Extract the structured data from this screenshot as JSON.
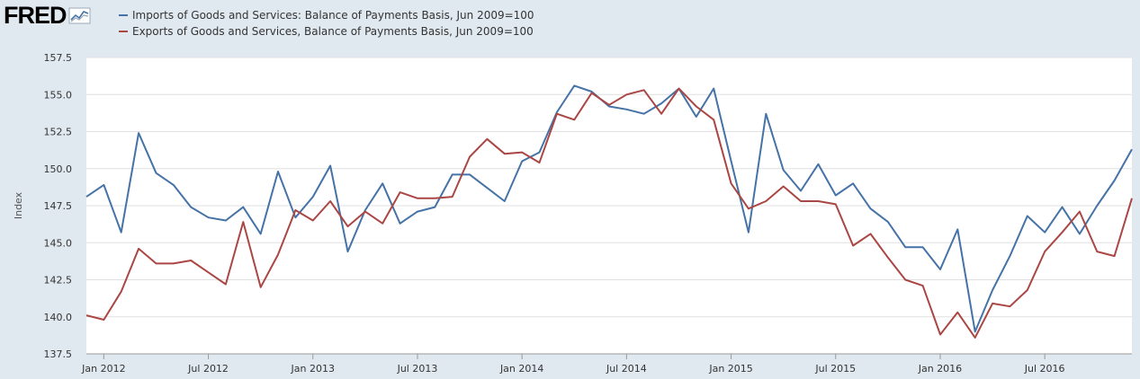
{
  "brand": {
    "logo_text": "FRED",
    "logo_icon": "trend-line-icon"
  },
  "colors": {
    "background": "#e1e9f0",
    "plot_background": "#ffffff",
    "grid": "#e0e0e0",
    "imports": "#4572a7",
    "exports": "#aa4643"
  },
  "chart_data": {
    "type": "line",
    "ylabel": "Index",
    "ylim": [
      137.5,
      157.5
    ],
    "yticks": [
      137.5,
      140.0,
      142.5,
      145.0,
      147.5,
      150.0,
      152.5,
      155.0,
      157.5
    ],
    "xlim": [
      "2011-12",
      "2016-12"
    ],
    "xticks": [
      {
        "date": "2012-01",
        "label": "Jan 2012"
      },
      {
        "date": "2012-07",
        "label": "Jul 2012"
      },
      {
        "date": "2013-01",
        "label": "Jan 2013"
      },
      {
        "date": "2013-07",
        "label": "Jul 2013"
      },
      {
        "date": "2014-01",
        "label": "Jan 2014"
      },
      {
        "date": "2014-07",
        "label": "Jul 2014"
      },
      {
        "date": "2015-01",
        "label": "Jan 2015"
      },
      {
        "date": "2015-07",
        "label": "Jul 2015"
      },
      {
        "date": "2016-01",
        "label": "Jan 2016"
      },
      {
        "date": "2016-07",
        "label": "Jul 2016"
      }
    ],
    "grid": true,
    "legend_position": "top-left",
    "x": [
      "2011-12",
      "2012-01",
      "2012-02",
      "2012-03",
      "2012-04",
      "2012-05",
      "2012-06",
      "2012-07",
      "2012-08",
      "2012-09",
      "2012-10",
      "2012-11",
      "2012-12",
      "2013-01",
      "2013-02",
      "2013-03",
      "2013-04",
      "2013-05",
      "2013-06",
      "2013-07",
      "2013-08",
      "2013-09",
      "2013-10",
      "2013-11",
      "2013-12",
      "2014-01",
      "2014-02",
      "2014-03",
      "2014-04",
      "2014-05",
      "2014-06",
      "2014-07",
      "2014-08",
      "2014-09",
      "2014-10",
      "2014-11",
      "2014-12",
      "2015-01",
      "2015-02",
      "2015-03",
      "2015-04",
      "2015-05",
      "2015-06",
      "2015-07",
      "2015-08",
      "2015-09",
      "2015-10",
      "2015-11",
      "2015-12",
      "2016-01",
      "2016-02",
      "2016-03",
      "2016-04",
      "2016-05",
      "2016-06",
      "2016-07",
      "2016-08",
      "2016-09",
      "2016-10",
      "2016-11",
      "2016-12"
    ],
    "series": [
      {
        "name": "Imports of Goods and Services: Balance of Payments Basis, Jun 2009=100",
        "color": "#4572a7",
        "values": [
          148.1,
          148.9,
          145.7,
          152.4,
          149.7,
          148.9,
          147.4,
          146.7,
          146.5,
          147.4,
          145.6,
          149.8,
          146.7,
          148.1,
          150.2,
          144.4,
          147.2,
          149.0,
          146.3,
          147.1,
          147.4,
          149.6,
          149.6,
          148.7,
          147.8,
          150.5,
          151.1,
          153.8,
          155.6,
          155.2,
          154.2,
          154.0,
          153.7,
          154.4,
          155.4,
          153.5,
          155.4,
          150.5,
          145.7,
          153.7,
          149.9,
          148.5,
          150.3,
          148.2,
          149.0,
          147.3,
          146.4,
          144.7,
          144.7,
          143.2,
          145.9,
          139.0,
          141.8,
          144.1,
          146.8,
          145.7,
          147.4,
          145.6,
          147.5,
          149.2,
          151.3
        ]
      },
      {
        "name": "Exports of Goods and Services, Balance of Payments Basis, Jun 2009=100",
        "color": "#aa4643",
        "values": [
          140.1,
          139.8,
          141.7,
          144.6,
          143.6,
          143.6,
          143.8,
          143.0,
          142.2,
          146.4,
          142.0,
          144.2,
          147.2,
          146.5,
          147.8,
          146.1,
          147.1,
          146.3,
          148.4,
          148.0,
          148.0,
          148.1,
          150.8,
          152.0,
          151.0,
          151.1,
          150.4,
          153.7,
          153.3,
          155.1,
          154.3,
          155.0,
          155.3,
          153.7,
          155.4,
          154.2,
          153.3,
          149.0,
          147.3,
          147.8,
          148.8,
          147.8,
          147.8,
          147.6,
          144.8,
          145.6,
          144.0,
          142.5,
          142.1,
          138.8,
          140.3,
          138.6,
          140.9,
          140.7,
          141.8,
          144.4,
          145.7,
          147.1,
          144.4,
          144.1,
          148.0
        ]
      }
    ]
  }
}
